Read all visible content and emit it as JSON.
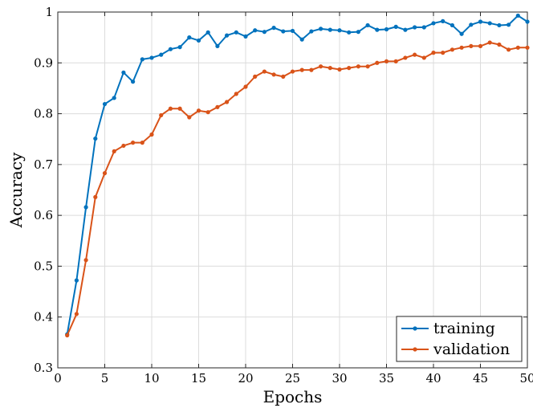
{
  "chart_data": {
    "type": "line",
    "xlabel": "Epochs",
    "ylabel": "Accuracy",
    "xlim": [
      0,
      50
    ],
    "ylim": [
      0.3,
      1
    ],
    "x_ticks": [
      "0",
      "5",
      "10",
      "15",
      "20",
      "25",
      "30",
      "35",
      "40",
      "45",
      "50"
    ],
    "y_ticks": [
      "0.3",
      "0.4",
      "0.5",
      "0.6",
      "0.7",
      "0.8",
      "0.9",
      "1"
    ],
    "grid": true,
    "legend_position": "bottom-right",
    "x": [
      1,
      2,
      3,
      4,
      5,
      6,
      7,
      8,
      9,
      10,
      11,
      12,
      13,
      14,
      15,
      16,
      17,
      18,
      19,
      20,
      21,
      22,
      23,
      24,
      25,
      26,
      27,
      28,
      29,
      30,
      31,
      32,
      33,
      34,
      35,
      36,
      37,
      38,
      39,
      40,
      41,
      42,
      43,
      44,
      45,
      46,
      47,
      48,
      49,
      50
    ],
    "series": [
      {
        "name": "training",
        "color": "#0072BD",
        "values": [
          0.366,
          0.472,
          0.616,
          0.751,
          0.819,
          0.831,
          0.881,
          0.863,
          0.907,
          0.91,
          0.916,
          0.927,
          0.931,
          0.95,
          0.944,
          0.96,
          0.933,
          0.954,
          0.96,
          0.952,
          0.964,
          0.961,
          0.969,
          0.962,
          0.963,
          0.946,
          0.962,
          0.967,
          0.965,
          0.964,
          0.96,
          0.961,
          0.974,
          0.965,
          0.966,
          0.971,
          0.965,
          0.97,
          0.97,
          0.978,
          0.982,
          0.974,
          0.957,
          0.975,
          0.981,
          0.978,
          0.974,
          0.975,
          0.993,
          0.981
        ]
      },
      {
        "name": "validation",
        "color": "#D95319",
        "values": [
          0.364,
          0.406,
          0.512,
          0.636,
          0.683,
          0.726,
          0.737,
          0.743,
          0.743,
          0.759,
          0.797,
          0.81,
          0.81,
          0.793,
          0.806,
          0.803,
          0.813,
          0.823,
          0.839,
          0.853,
          0.873,
          0.883,
          0.877,
          0.873,
          0.883,
          0.886,
          0.886,
          0.893,
          0.89,
          0.887,
          0.89,
          0.893,
          0.893,
          0.9,
          0.903,
          0.903,
          0.91,
          0.916,
          0.91,
          0.92,
          0.92,
          0.926,
          0.93,
          0.933,
          0.933,
          0.94,
          0.936,
          0.926,
          0.93,
          0.93
        ]
      }
    ]
  }
}
